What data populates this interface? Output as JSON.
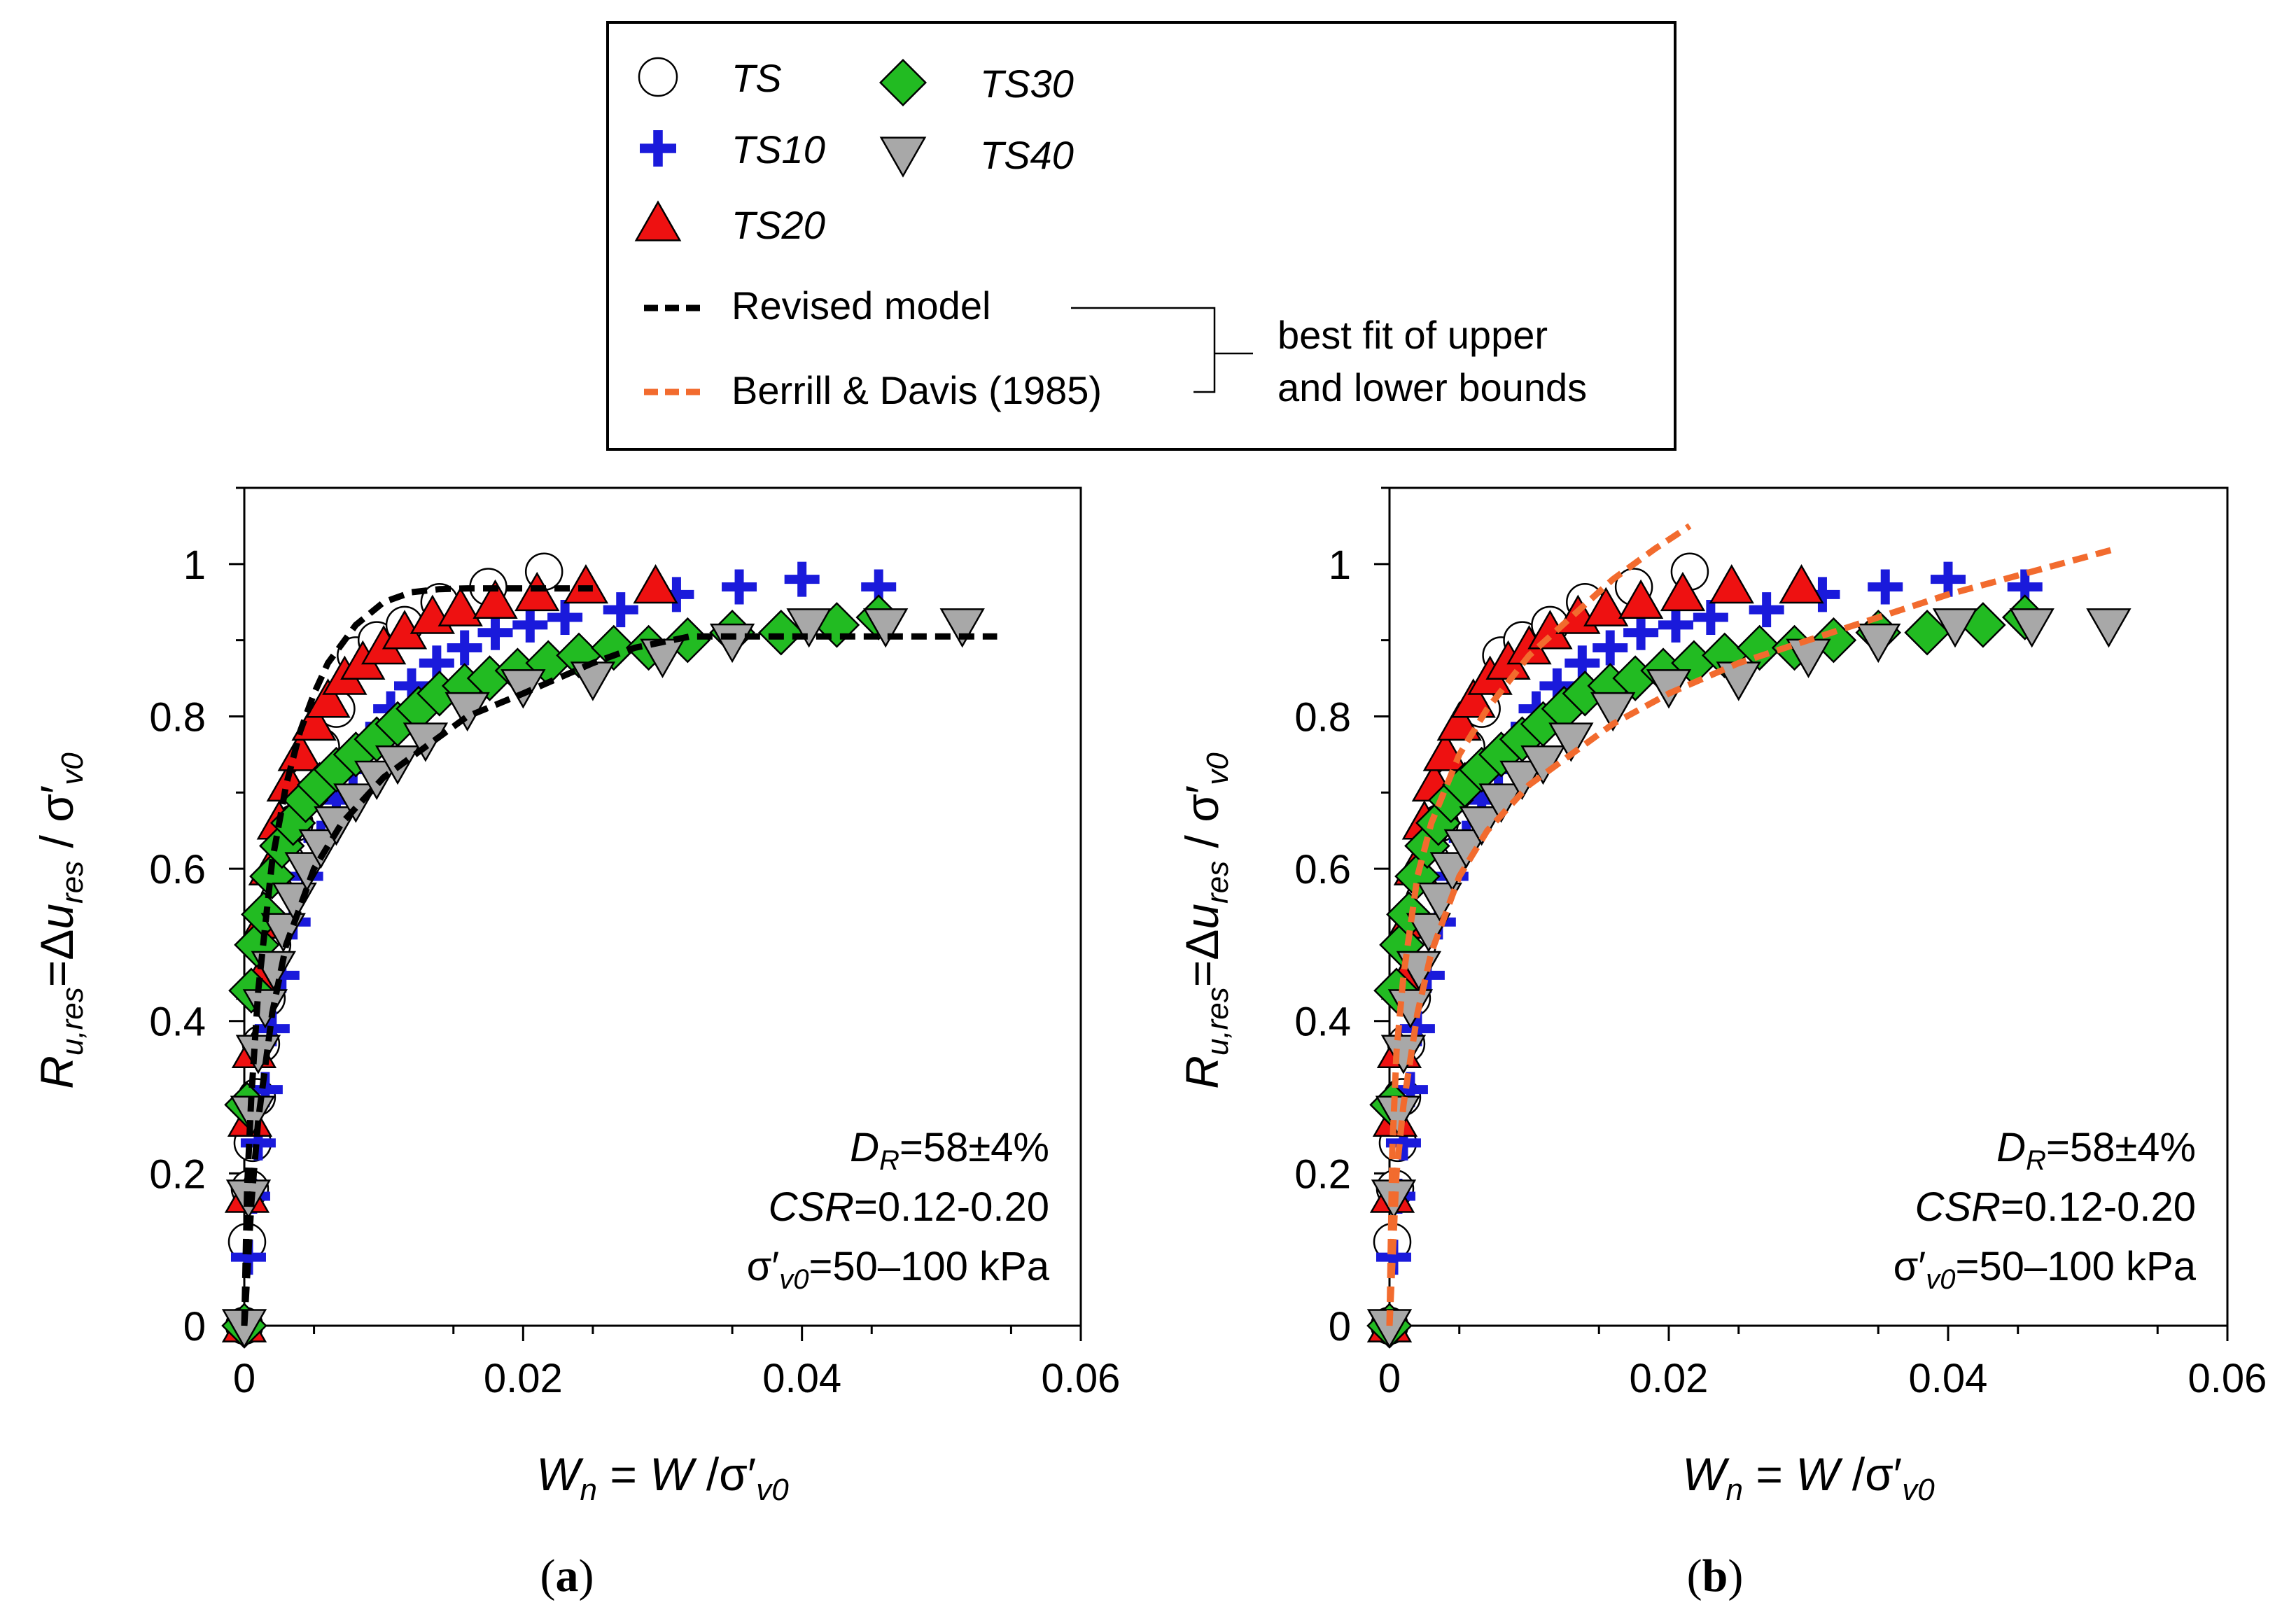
{
  "legend": {
    "entries": [
      {
        "name": "TS",
        "marker": "circle",
        "color": "#ffffff"
      },
      {
        "name": "TS30",
        "marker": "diamond",
        "color": "#22bb22"
      },
      {
        "name": "TS10",
        "marker": "plus",
        "color": "#1a1adb"
      },
      {
        "name": "TS40",
        "marker": "tri-down",
        "color": "#a8a8a8"
      },
      {
        "name": "TS20",
        "marker": "triangle",
        "color": "#ee1111"
      }
    ],
    "revised_model": "Revised model",
    "berrill_davis": "Berrill & Davis (1985)",
    "bracket_note_line1": "best fit of upper",
    "bracket_note_line2": "and lower bounds",
    "revised_color": "#000000",
    "berrill_color": "#f26b2e"
  },
  "panel_labels": [
    "a",
    "b"
  ],
  "annotation": {
    "dr_value": "=58±4%",
    "csr_value": "=0.12-0.20",
    "sigma_value": "=50–100 kPa"
  },
  "chart_data": [
    {
      "type": "scatter",
      "panel": "a",
      "xlabel": "Wn = W /σ'v0",
      "ylabel": "Ru,res=Δures / σ'v0",
      "xlim": [
        0,
        0.06
      ],
      "ylim": [
        0,
        1.1
      ],
      "xticks": [
        0,
        0.02,
        0.04,
        0.06
      ],
      "xtick_labels": [
        "0",
        "0.02",
        "0.04",
        "0.06"
      ],
      "yticks": [
        0,
        0.2,
        0.4,
        0.6,
        0.8,
        1.0
      ],
      "ytick_labels": [
        "0",
        "0.2",
        "0.4",
        "0.6",
        "0.8",
        "1"
      ],
      "series": [
        {
          "name": "TS",
          "x": [
            0,
            0.0002,
            0.0004,
            0.0006,
            0.0009,
            0.0012,
            0.0016,
            0.002,
            0.0025,
            0.003,
            0.0036,
            0.0045,
            0.0055,
            0.0066,
            0.008,
            0.0095,
            0.0115,
            0.014,
            0.0175,
            0.0215
          ],
          "y": [
            0,
            0.11,
            0.18,
            0.24,
            0.3,
            0.37,
            0.43,
            0.5,
            0.56,
            0.61,
            0.66,
            0.71,
            0.76,
            0.81,
            0.88,
            0.9,
            0.92,
            0.95,
            0.97,
            0.99
          ]
        },
        {
          "name": "TS10",
          "x": [
            0,
            0.0003,
            0.0006,
            0.001,
            0.0015,
            0.002,
            0.0027,
            0.0035,
            0.0044,
            0.0055,
            0.0066,
            0.0078,
            0.009,
            0.0105,
            0.012,
            0.0138,
            0.0158,
            0.018,
            0.0205,
            0.023,
            0.027,
            0.031,
            0.0355,
            0.04,
            0.0455
          ],
          "y": [
            0,
            0.09,
            0.17,
            0.24,
            0.31,
            0.39,
            0.46,
            0.53,
            0.59,
            0.64,
            0.69,
            0.73,
            0.77,
            0.81,
            0.84,
            0.87,
            0.89,
            0.91,
            0.92,
            0.93,
            0.94,
            0.96,
            0.97,
            0.98,
            0.97
          ]
        },
        {
          "name": "TS20",
          "x": [
            0,
            0.0002,
            0.0004,
            0.0007,
            0.001,
            0.0014,
            0.0019,
            0.0025,
            0.0032,
            0.004,
            0.005,
            0.006,
            0.0072,
            0.0085,
            0.01,
            0.0115,
            0.0135,
            0.0155,
            0.018,
            0.021,
            0.0245,
            0.0295
          ],
          "y": [
            0,
            0.17,
            0.27,
            0.36,
            0.45,
            0.53,
            0.6,
            0.66,
            0.71,
            0.75,
            0.79,
            0.82,
            0.85,
            0.87,
            0.89,
            0.91,
            0.93,
            0.94,
            0.95,
            0.96,
            0.97,
            0.97
          ]
        },
        {
          "name": "TS30",
          "x": [
            0,
            0.0002,
            0.0005,
            0.0009,
            0.0014,
            0.002,
            0.0027,
            0.0035,
            0.0044,
            0.0054,
            0.0066,
            0.008,
            0.0095,
            0.011,
            0.0125,
            0.014,
            0.0158,
            0.0176,
            0.0196,
            0.0218,
            0.024,
            0.0265,
            0.029,
            0.0318,
            0.035,
            0.0385,
            0.0425,
            0.0455
          ],
          "y": [
            0,
            0.29,
            0.44,
            0.5,
            0.54,
            0.59,
            0.63,
            0.66,
            0.69,
            0.71,
            0.73,
            0.75,
            0.77,
            0.79,
            0.81,
            0.83,
            0.84,
            0.85,
            0.86,
            0.87,
            0.88,
            0.89,
            0.89,
            0.9,
            0.91,
            0.91,
            0.92,
            0.93
          ]
        },
        {
          "name": "TS40",
          "x": [
            0,
            0.0003,
            0.0006,
            0.001,
            0.0015,
            0.0021,
            0.0028,
            0.0036,
            0.0045,
            0.0055,
            0.0066,
            0.008,
            0.0095,
            0.011,
            0.013,
            0.016,
            0.02,
            0.025,
            0.03,
            0.035,
            0.0405,
            0.046,
            0.0515
          ],
          "y": [
            0,
            0.17,
            0.28,
            0.36,
            0.42,
            0.47,
            0.52,
            0.56,
            0.6,
            0.63,
            0.66,
            0.69,
            0.72,
            0.74,
            0.77,
            0.81,
            0.84,
            0.85,
            0.88,
            0.9,
            0.92,
            0.92,
            0.92
          ]
        },
        {
          "name": "Revised model (upper)",
          "x": [
            0,
            0.0002,
            0.0005,
            0.001,
            0.002,
            0.003,
            0.004,
            0.005,
            0.006,
            0.008,
            0.01,
            0.012,
            0.014,
            0.016,
            0.018,
            0.025
          ],
          "y": [
            0,
            0.18,
            0.3,
            0.44,
            0.61,
            0.71,
            0.78,
            0.83,
            0.87,
            0.92,
            0.95,
            0.963,
            0.967,
            0.968,
            0.968,
            0.968
          ]
        },
        {
          "name": "Revised model (lower)",
          "x": [
            0,
            0.0005,
            0.001,
            0.002,
            0.003,
            0.005,
            0.007,
            0.01,
            0.013,
            0.016,
            0.02,
            0.025,
            0.028,
            0.032,
            0.036,
            0.045,
            0.054
          ],
          "y": [
            0,
            0.16,
            0.27,
            0.41,
            0.5,
            0.6,
            0.66,
            0.72,
            0.76,
            0.8,
            0.83,
            0.87,
            0.89,
            0.905,
            0.905,
            0.905,
            0.905
          ]
        }
      ]
    },
    {
      "type": "scatter",
      "panel": "b",
      "xlabel": "Wn = W /σ'v0",
      "ylabel": "Ru,res=Δures / σ'v0",
      "xlim": [
        0,
        0.06
      ],
      "ylim": [
        0,
        1.1
      ],
      "xticks": [
        0,
        0.02,
        0.04,
        0.06
      ],
      "xtick_labels": [
        "0",
        "0.02",
        "0.04",
        "0.06"
      ],
      "yticks": [
        0,
        0.2,
        0.4,
        0.6,
        0.8,
        1.0
      ],
      "ytick_labels": [
        "0",
        "0.2",
        "0.4",
        "0.6",
        "0.8",
        "1"
      ],
      "series": [
        {
          "name": "TS",
          "x": [
            0,
            0.0002,
            0.0004,
            0.0006,
            0.0009,
            0.0012,
            0.0016,
            0.002,
            0.0025,
            0.003,
            0.0036,
            0.0045,
            0.0055,
            0.0066,
            0.008,
            0.0095,
            0.0115,
            0.014,
            0.0175,
            0.0215
          ],
          "y": [
            0,
            0.11,
            0.18,
            0.24,
            0.3,
            0.37,
            0.43,
            0.5,
            0.56,
            0.61,
            0.66,
            0.71,
            0.76,
            0.81,
            0.88,
            0.9,
            0.92,
            0.95,
            0.97,
            0.99
          ]
        },
        {
          "name": "TS10",
          "x": [
            0,
            0.0003,
            0.0006,
            0.001,
            0.0015,
            0.002,
            0.0027,
            0.0035,
            0.0044,
            0.0055,
            0.0066,
            0.0078,
            0.009,
            0.0105,
            0.012,
            0.0138,
            0.0158,
            0.018,
            0.0205,
            0.023,
            0.027,
            0.031,
            0.0355,
            0.04,
            0.0455
          ],
          "y": [
            0,
            0.09,
            0.17,
            0.24,
            0.31,
            0.39,
            0.46,
            0.53,
            0.59,
            0.64,
            0.69,
            0.73,
            0.77,
            0.81,
            0.84,
            0.87,
            0.89,
            0.91,
            0.92,
            0.93,
            0.94,
            0.96,
            0.97,
            0.98,
            0.97
          ]
        },
        {
          "name": "TS20",
          "x": [
            0,
            0.0002,
            0.0004,
            0.0007,
            0.001,
            0.0014,
            0.0019,
            0.0025,
            0.0032,
            0.004,
            0.005,
            0.006,
            0.0072,
            0.0085,
            0.01,
            0.0115,
            0.0135,
            0.0155,
            0.018,
            0.021,
            0.0245,
            0.0295
          ],
          "y": [
            0,
            0.17,
            0.27,
            0.36,
            0.45,
            0.53,
            0.6,
            0.66,
            0.71,
            0.75,
            0.79,
            0.82,
            0.85,
            0.87,
            0.89,
            0.91,
            0.93,
            0.94,
            0.95,
            0.96,
            0.97,
            0.97
          ]
        },
        {
          "name": "TS30",
          "x": [
            0,
            0.0002,
            0.0005,
            0.0009,
            0.0014,
            0.002,
            0.0027,
            0.0035,
            0.0044,
            0.0054,
            0.0066,
            0.008,
            0.0095,
            0.011,
            0.0125,
            0.014,
            0.0158,
            0.0176,
            0.0196,
            0.0218,
            0.024,
            0.0265,
            0.029,
            0.0318,
            0.035,
            0.0385,
            0.0425,
            0.0455
          ],
          "y": [
            0,
            0.29,
            0.44,
            0.5,
            0.54,
            0.59,
            0.63,
            0.66,
            0.69,
            0.71,
            0.73,
            0.75,
            0.77,
            0.79,
            0.81,
            0.83,
            0.84,
            0.85,
            0.86,
            0.87,
            0.88,
            0.89,
            0.89,
            0.9,
            0.91,
            0.91,
            0.92,
            0.93
          ]
        },
        {
          "name": "TS40",
          "x": [
            0,
            0.0003,
            0.0006,
            0.001,
            0.0015,
            0.0021,
            0.0028,
            0.0036,
            0.0045,
            0.0055,
            0.0066,
            0.008,
            0.0095,
            0.011,
            0.013,
            0.016,
            0.02,
            0.025,
            0.03,
            0.035,
            0.0405,
            0.046,
            0.0515
          ],
          "y": [
            0,
            0.17,
            0.28,
            0.36,
            0.42,
            0.47,
            0.52,
            0.56,
            0.6,
            0.63,
            0.66,
            0.69,
            0.72,
            0.74,
            0.77,
            0.81,
            0.84,
            0.85,
            0.88,
            0.9,
            0.92,
            0.92,
            0.92
          ]
        },
        {
          "name": "Berrill & Davis (upper)",
          "x": [
            0,
            0.0002,
            0.0005,
            0.001,
            0.002,
            0.003,
            0.005,
            0.007,
            0.01,
            0.013,
            0.016,
            0.019,
            0.0215
          ],
          "y": [
            0,
            0.23,
            0.36,
            0.46,
            0.59,
            0.66,
            0.75,
            0.81,
            0.88,
            0.93,
            0.98,
            1.02,
            1.05
          ]
        },
        {
          "name": "Berrill & Davis (lower)",
          "x": [
            0,
            0.0005,
            0.001,
            0.002,
            0.003,
            0.005,
            0.007,
            0.01,
            0.013,
            0.016,
            0.02,
            0.025,
            0.03,
            0.035,
            0.04,
            0.046,
            0.052
          ],
          "y": [
            0,
            0.2,
            0.29,
            0.41,
            0.49,
            0.59,
            0.65,
            0.71,
            0.75,
            0.79,
            0.83,
            0.87,
            0.9,
            0.93,
            0.96,
            0.99,
            1.02
          ]
        }
      ]
    }
  ]
}
